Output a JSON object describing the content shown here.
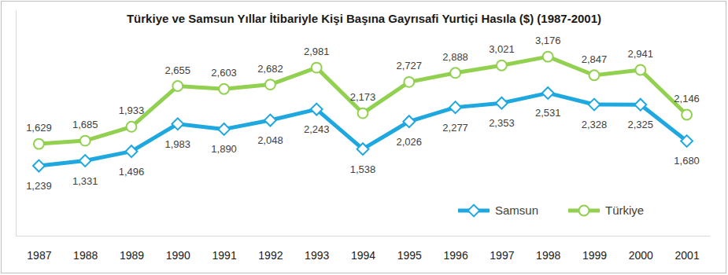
{
  "chart_data": {
    "type": "line",
    "title": "Türkiye ve Samsun Yıllar İtibariyle Kişi Başına Gayrısafi Yurtiçi Hasıla ($) (1987-2001)",
    "categories": [
      "1987",
      "1988",
      "1989",
      "1990",
      "1991",
      "1992",
      "1993",
      "1994",
      "1995",
      "1996",
      "1997",
      "1998",
      "1999",
      "2000",
      "2001"
    ],
    "series": [
      {
        "name": "Samsun",
        "color": "#1fa8e0",
        "marker": "diamond",
        "values": [
          1239,
          1331,
          1496,
          1983,
          1890,
          2048,
          2243,
          1538,
          2026,
          2277,
          2353,
          2531,
          2328,
          2325,
          1680
        ],
        "value_labels": [
          "1,239",
          "1,331",
          "1,496",
          "1,983",
          "1,890",
          "2,048",
          "2,243",
          "1,538",
          "2,026",
          "2,277",
          "2,353",
          "2,531",
          "2,328",
          "2,325",
          "1,680"
        ]
      },
      {
        "name": "Türkiye",
        "color": "#92d050",
        "marker": "circle",
        "values": [
          1629,
          1685,
          1933,
          2655,
          2603,
          2682,
          2981,
          2173,
          2727,
          2888,
          3021,
          3176,
          2847,
          2941,
          2146
        ],
        "value_labels": [
          "1,629",
          "1,685",
          "1,933",
          "2,655",
          "2,603",
          "2,682",
          "2,981",
          "2,173",
          "2,727",
          "2,888",
          "3,021",
          "3,176",
          "2,847",
          "2,941",
          "2,146"
        ]
      }
    ],
    "ylim": [
      0,
      4000
    ],
    "yticks": [],
    "tick_labels": "x",
    "data_labels": true,
    "legend": "bottom-right",
    "grid": false
  }
}
